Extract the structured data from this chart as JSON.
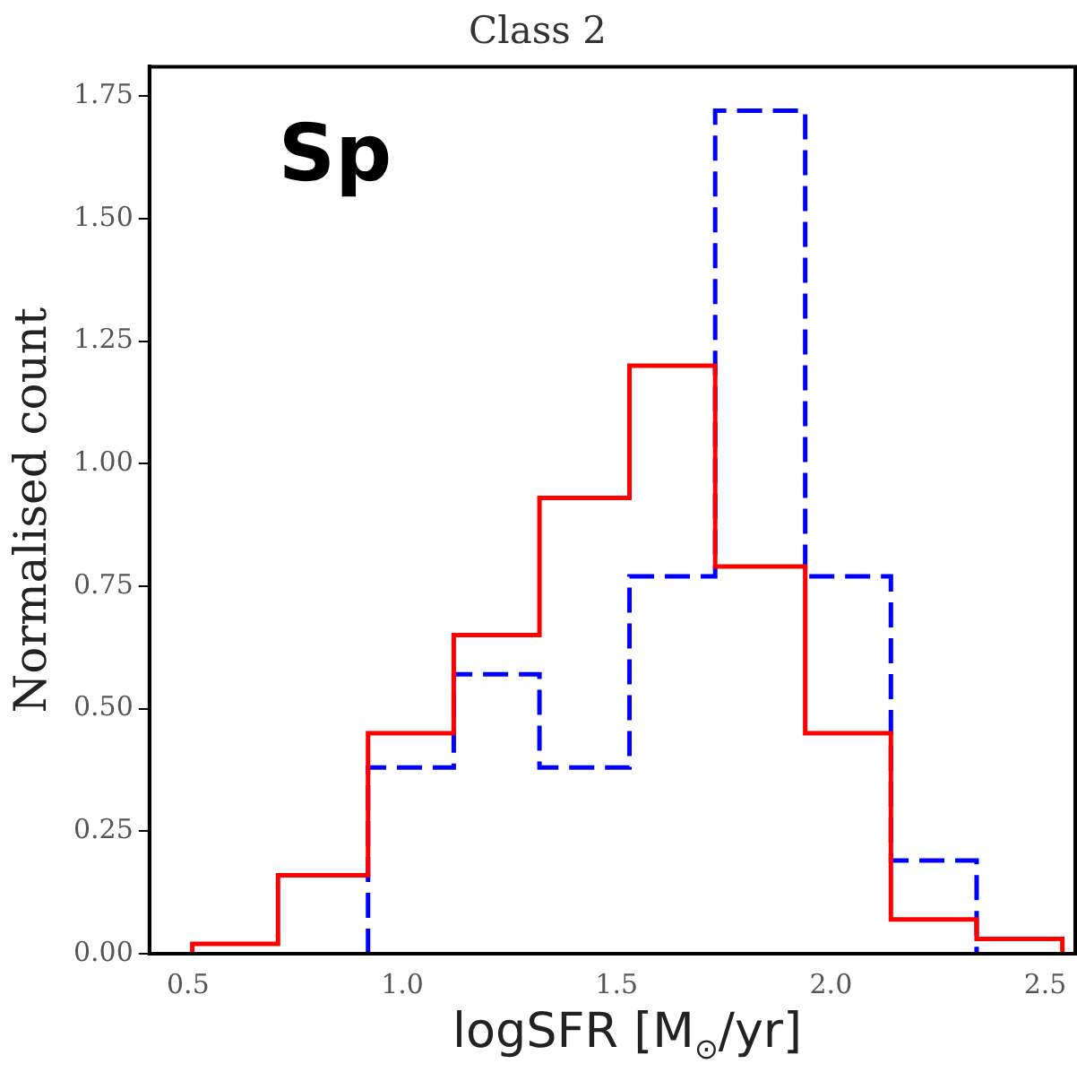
{
  "chart_data": {
    "type": "histogram",
    "title": "Class 2",
    "xlabel": "logSFR [M$_{⊙}$/yr]",
    "ylabel": "Normalised count",
    "annotations": [
      "Sp"
    ],
    "bins": [
      0.51,
      0.71,
      0.92,
      1.12,
      1.32,
      1.53,
      1.73,
      1.94,
      2.14,
      2.34,
      2.54
    ],
    "series": [
      {
        "color": "#ff0000",
        "line_style": "solid",
        "values": [
          0.02,
          0.16,
          0.45,
          0.65,
          0.93,
          1.2,
          0.79,
          0.45,
          0.07,
          0.03
        ]
      },
      {
        "color": "#0000ff",
        "line_style": "dashed",
        "bins": [
          0.92,
          1.12,
          1.32,
          1.53,
          1.73,
          1.94,
          2.14,
          2.34
        ],
        "values": [
          0.38,
          0.57,
          0.38,
          0.77,
          1.72,
          0.77,
          0.19
        ]
      }
    ],
    "xlim": [
      0.41,
      2.57
    ],
    "ylim": [
      0,
      1.81
    ],
    "xticks": [
      {
        "value": 0.5,
        "label": "0.5"
      },
      {
        "value": 1,
        "label": "1.0"
      },
      {
        "value": 1.5,
        "label": "1.5"
      },
      {
        "value": 2,
        "label": "2.0"
      },
      {
        "value": 2.5,
        "label": "2.5"
      }
    ],
    "yticks": [
      {
        "value": 0,
        "label": "0.00"
      },
      {
        "value": 0.25,
        "label": "0.25"
      },
      {
        "value": 0.5,
        "label": "0.50"
      },
      {
        "value": 0.75,
        "label": "0.75"
      },
      {
        "value": 1,
        "label": "1.00"
      },
      {
        "value": 1.25,
        "label": "1.25"
      },
      {
        "value": 1.5,
        "label": "1.50"
      },
      {
        "value": 1.75,
        "label": "1.75"
      }
    ],
    "grid": false,
    "legend": false
  }
}
